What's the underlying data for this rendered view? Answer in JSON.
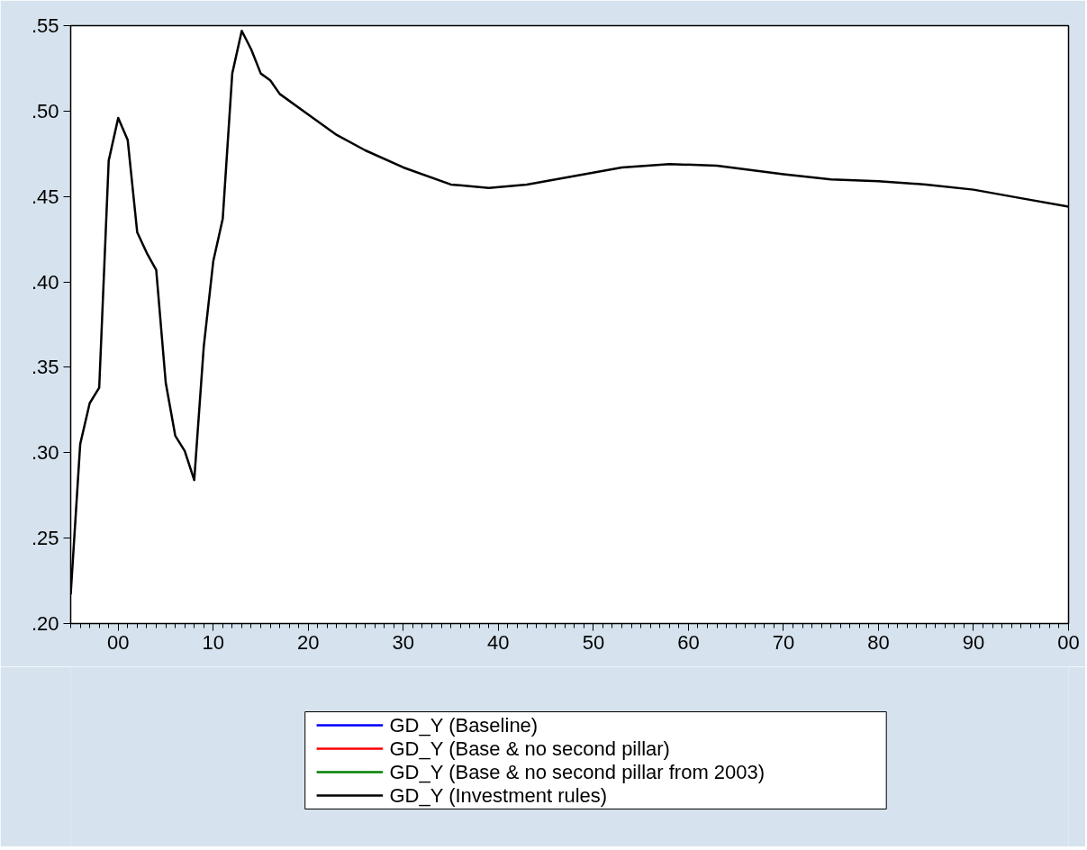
{
  "chart_data": {
    "type": "line",
    "x": [
      1995,
      1996,
      1997,
      1998,
      1999,
      2000,
      2001,
      2002,
      2003,
      2004,
      2005,
      2006,
      2007,
      2008,
      2009,
      2010,
      2011,
      2012,
      2013,
      2014,
      2015,
      2016,
      2017,
      2020,
      2023,
      2026,
      2030,
      2035,
      2039,
      2043,
      2048,
      2053,
      2058,
      2063,
      2070,
      2075,
      2080,
      2085,
      2090,
      2095,
      2100
    ],
    "series": [
      {
        "name": "GD_Y (Baseline)",
        "color": "#0000ff",
        "values": [
          null,
          null,
          null,
          null,
          null,
          null,
          null,
          null,
          null,
          null,
          null,
          null,
          null,
          null,
          null,
          null,
          null,
          null,
          null,
          null,
          null,
          null,
          null,
          null,
          null,
          null,
          null,
          null,
          null,
          null,
          null,
          null,
          null,
          null,
          null,
          null,
          null,
          null,
          null,
          null,
          null
        ]
      },
      {
        "name": "GD_Y (Base & no second pillar)",
        "color": "#ff0000",
        "values": [
          null,
          null,
          null,
          null,
          null,
          null,
          null,
          null,
          null,
          null,
          null,
          null,
          null,
          null,
          null,
          null,
          null,
          null,
          null,
          null,
          null,
          null,
          null,
          null,
          null,
          null,
          null,
          null,
          null,
          null,
          null,
          null,
          null,
          null,
          null,
          null,
          null,
          null,
          null,
          null,
          null
        ]
      },
      {
        "name": "GD_Y (Base & no second pillar from 2003)",
        "color": "#008000",
        "values": [
          null,
          null,
          null,
          null,
          null,
          null,
          null,
          null,
          null,
          null,
          null,
          null,
          null,
          null,
          null,
          null,
          null,
          null,
          null,
          null,
          null,
          null,
          null,
          null,
          null,
          null,
          null,
          null,
          null,
          null,
          null,
          null,
          null,
          null,
          null,
          null,
          null,
          null,
          null,
          null,
          null
        ]
      },
      {
        "name": "GD_Y (Investment rules)",
        "color": "#000000",
        "values": [
          0.217,
          0.305,
          0.329,
          0.338,
          0.471,
          0.496,
          0.483,
          0.429,
          0.417,
          0.407,
          0.341,
          0.31,
          0.301,
          0.284,
          0.362,
          0.412,
          0.437,
          0.522,
          0.547,
          0.536,
          0.522,
          0.518,
          0.51,
          0.498,
          0.486,
          0.477,
          0.467,
          0.457,
          0.455,
          0.457,
          0.462,
          0.467,
          0.469,
          0.468,
          0.463,
          0.46,
          0.459,
          0.457,
          0.454,
          0.449,
          0.444
        ]
      }
    ],
    "xlim": [
      1995,
      2100
    ],
    "xticks": [
      {
        "value": 2000,
        "label": "00"
      },
      {
        "value": 2010,
        "label": "10"
      },
      {
        "value": 2020,
        "label": "20"
      },
      {
        "value": 2030,
        "label": "30"
      },
      {
        "value": 2040,
        "label": "40"
      },
      {
        "value": 2050,
        "label": "50"
      },
      {
        "value": 2060,
        "label": "60"
      },
      {
        "value": 2070,
        "label": "70"
      },
      {
        "value": 2080,
        "label": "80"
      },
      {
        "value": 2090,
        "label": "90"
      },
      {
        "value": 2100,
        "label": "00"
      }
    ],
    "ylim": [
      0.2,
      0.55
    ],
    "yticks": [
      {
        "value": 0.2,
        "label": ".20"
      },
      {
        "value": 0.25,
        "label": ".25"
      },
      {
        "value": 0.3,
        "label": ".30"
      },
      {
        "value": 0.35,
        "label": ".35"
      },
      {
        "value": 0.4,
        "label": ".40"
      },
      {
        "value": 0.45,
        "label": ".45"
      },
      {
        "value": 0.5,
        "label": ".50"
      },
      {
        "value": 0.55,
        "label": ".55"
      }
    ],
    "grid": false,
    "legend": "bottom",
    "line_style": "solid"
  }
}
